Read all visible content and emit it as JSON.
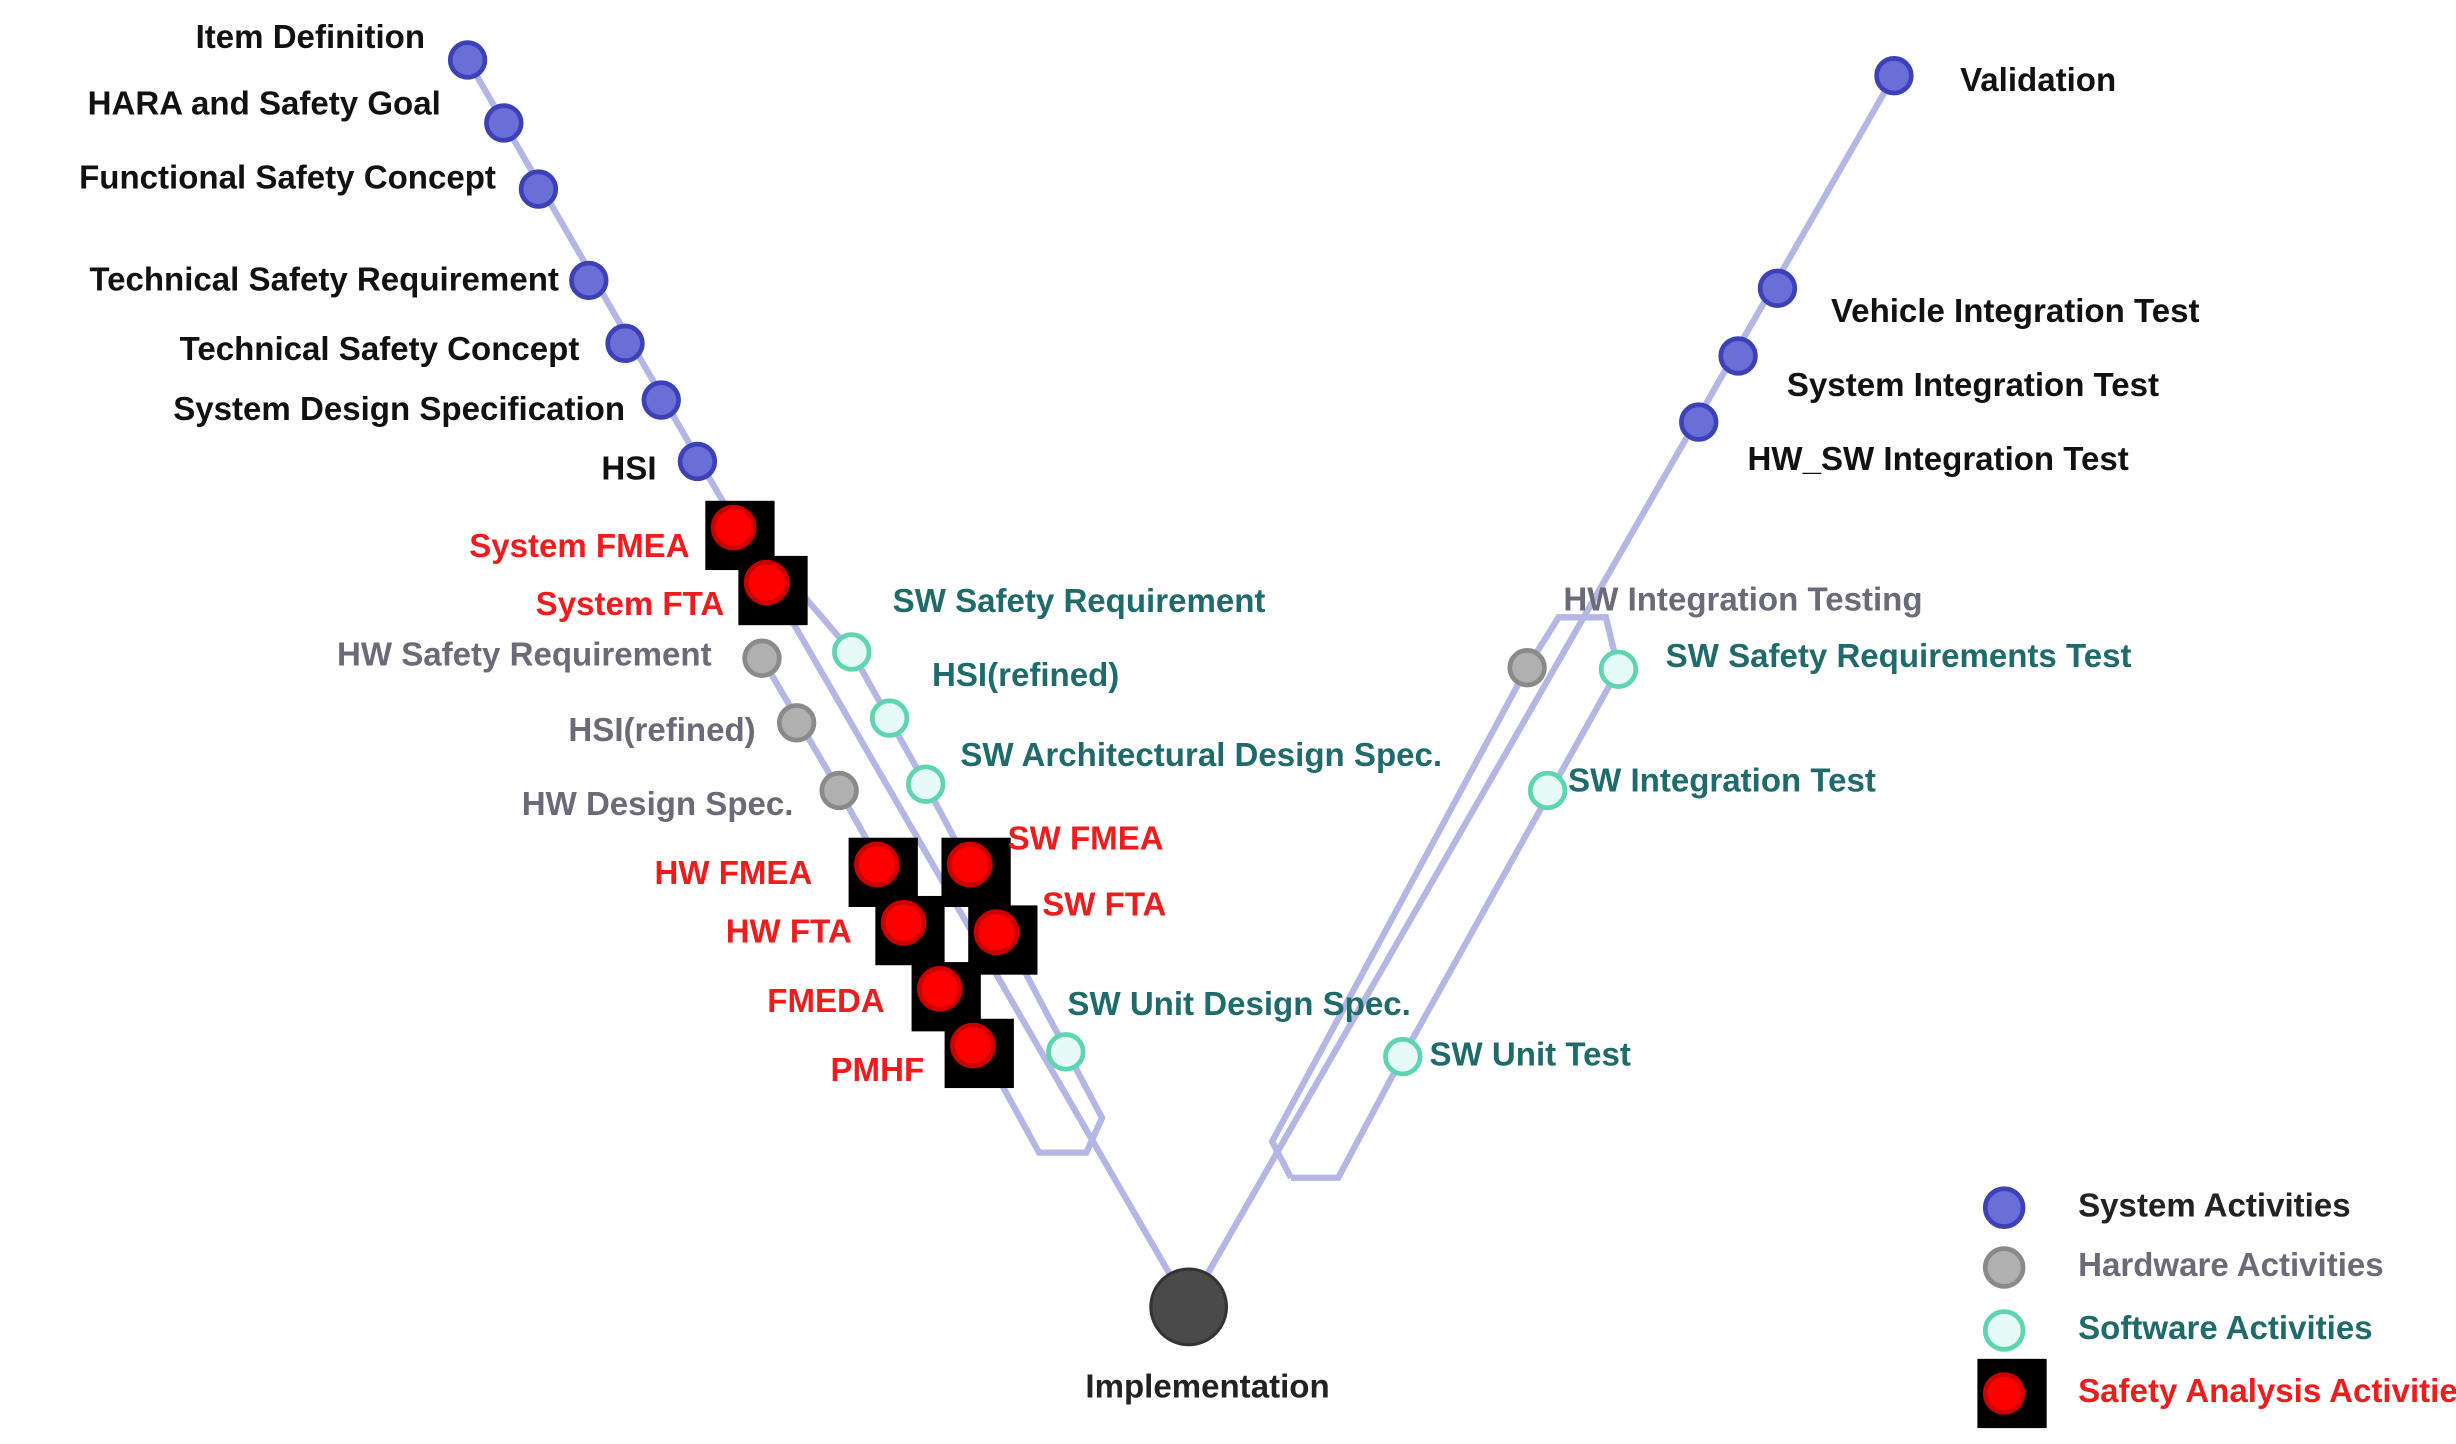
{
  "system_activities": [
    "Item Definition",
    "HARA and Safety Goal",
    "Functional Safety Concept",
    "Technical Safety Requirement",
    "Technical Safety Concept",
    "System Design Specification",
    "HSI",
    "Validation",
    "Vehicle Integration Test",
    "System Integration Test",
    "HW_SW Integration Test"
  ],
  "safety_analysis_activities": [
    "System FMEA",
    "System FTA",
    "HW FMEA",
    "HW FTA",
    "FMEDA",
    "PMHF",
    "SW FMEA",
    "SW FTA"
  ],
  "hardware_activities": [
    "HW Safety Requirement",
    "HSI(refined)",
    "HW Design Spec.",
    "HW Integration Testing"
  ],
  "software_activities": [
    "SW Safety Requirement",
    "HSI(refined)",
    "SW Architectural Design Spec.",
    "SW Unit Design Spec.",
    "SW Safety Requirements Test",
    "SW Integration Test",
    "SW Unit Test"
  ],
  "implementation": "Implementation",
  "legend": [
    "System Activities",
    "Hardware Activities",
    "Software Activities",
    "Safety Analysis Activities"
  ]
}
